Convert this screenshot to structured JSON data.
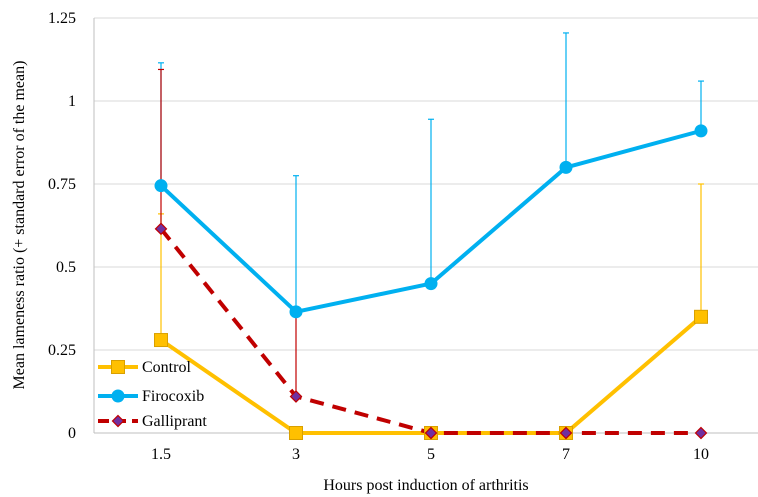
{
  "chart_data": {
    "type": "line",
    "title": "",
    "xlabel": "Hours post induction of arthritis",
    "ylabel": "Mean lameness ratio (+ standard error of the mean)",
    "categories": [
      "1.5",
      "3",
      "5",
      "7",
      "10"
    ],
    "ylim": [
      0,
      1.25
    ],
    "yticks": [
      "0",
      "0.25",
      "0.5",
      "0.75",
      "1",
      "1.25"
    ],
    "grid": true,
    "legend_position": "bottom-left",
    "series": [
      {
        "name": "Control",
        "color": "#FFC000",
        "marker": "square",
        "dash": false,
        "values": [
          0.28,
          0,
          0,
          0,
          0.35
        ],
        "error_upper": [
          0.66,
          null,
          null,
          null,
          0.75
        ]
      },
      {
        "name": "Firocoxib",
        "color": "#00B0F0",
        "marker": "circle",
        "dash": false,
        "values": [
          0.745,
          0.365,
          0.45,
          0.8,
          0.91
        ],
        "error_upper": [
          1.115,
          0.775,
          0.945,
          1.205,
          1.06
        ]
      },
      {
        "name": "Galliprant",
        "color": "#C00000",
        "marker": "diamond",
        "dash": true,
        "values": [
          0.615,
          0.11,
          0,
          0,
          0
        ],
        "error_upper": [
          1.095,
          0.365,
          null,
          null,
          null
        ]
      }
    ]
  }
}
